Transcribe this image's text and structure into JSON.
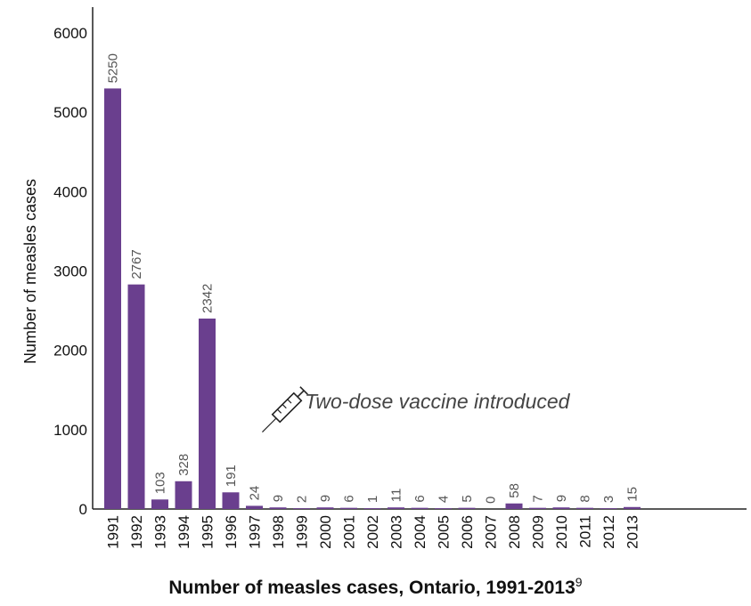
{
  "chart_data": {
    "type": "bar",
    "title": "Number of measles cases, Ontario, 1991-2013",
    "title_superscript": "9",
    "xlabel": "",
    "ylabel": "Number of measles cases",
    "ylim": [
      0,
      6000
    ],
    "yticks": [
      0,
      1000,
      2000,
      3000,
      4000,
      5000,
      6000
    ],
    "grid": false,
    "bar_color": "#6A3F8E",
    "categories": [
      "1991",
      "1992",
      "1993",
      "1994",
      "1995",
      "1996",
      "1997",
      "1998",
      "1999",
      "2000",
      "2001",
      "2002",
      "2003",
      "2004",
      "2005",
      "2006",
      "2007",
      "2008",
      "2009",
      "2010",
      "2011",
      "2012",
      "2013"
    ],
    "values": [
      5250,
      2767,
      103,
      328,
      2342,
      191,
      24,
      9,
      2,
      9,
      6,
      1,
      11,
      6,
      4,
      5,
      0,
      58,
      7,
      9,
      8,
      3,
      15
    ],
    "bar_heights_estimated": [
      5300,
      2830,
      120,
      350,
      2400,
      210,
      40,
      20,
      10,
      20,
      15,
      10,
      20,
      15,
      10,
      15,
      0,
      70,
      15,
      20,
      15,
      10,
      25
    ],
    "annotation": {
      "text": "Two-dose vaccine introduced",
      "category": "1996",
      "icon": "syringe-icon"
    }
  }
}
